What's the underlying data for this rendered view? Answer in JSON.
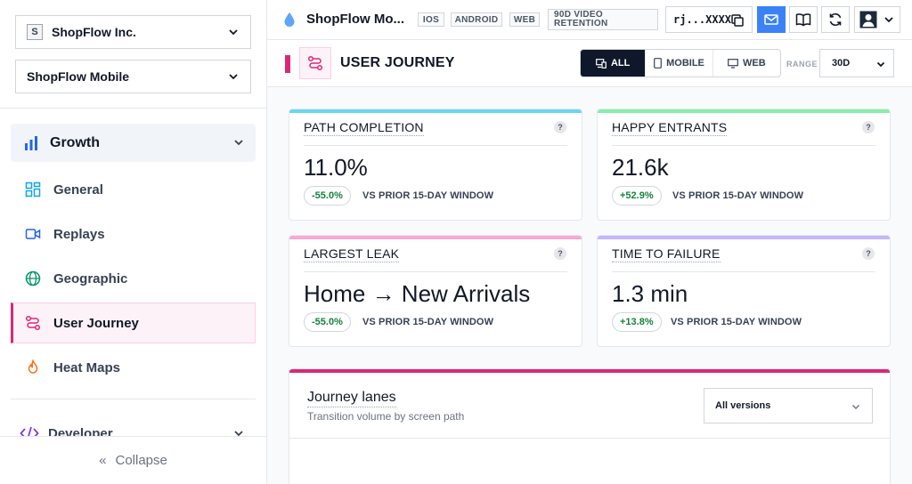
{
  "sidebar": {
    "org": {
      "badge": "S",
      "name": "ShopFlow Inc."
    },
    "app": {
      "name": "ShopFlow Mobile"
    },
    "section": {
      "label": "Growth"
    },
    "items": [
      {
        "label": "General",
        "icon": "grid-icon"
      },
      {
        "label": "Replays",
        "icon": "video-icon"
      },
      {
        "label": "Geographic",
        "icon": "globe-icon"
      },
      {
        "label": "User Journey",
        "icon": "route-icon",
        "active": true
      },
      {
        "label": "Heat Maps",
        "icon": "flame-icon"
      }
    ],
    "developer": {
      "label": "Developer"
    },
    "collapse": {
      "label": "Collapse"
    }
  },
  "topbar": {
    "app_title": "ShopFlow Mo...",
    "platforms": [
      "IOS",
      "ANDROID",
      "WEB"
    ],
    "retention_line1": "90D VIDEO",
    "retention_line2": "RETENTION",
    "api_key": "rj...XXXX"
  },
  "header": {
    "title": "USER JOURNEY",
    "platform_filter": [
      {
        "label": "ALL",
        "active": true
      },
      {
        "label": "MOBILE",
        "active": false
      },
      {
        "label": "WEB",
        "active": false
      }
    ],
    "range_label": "RANGE",
    "range_value": "30D"
  },
  "cards": [
    {
      "title": "PATH COMPLETION",
      "value": "11.0%",
      "delta": "-55.0%",
      "vs": "VS PRIOR 15-DAY WINDOW",
      "color": "#67d8f0"
    },
    {
      "title": "HAPPY ENTRANTS",
      "value": "21.6k",
      "delta": "+52.9%",
      "vs": "VS PRIOR 15-DAY WINDOW",
      "color": "#86efac"
    },
    {
      "title": "LARGEST LEAK",
      "value": "Home → New Arrivals",
      "delta": "-55.0%",
      "vs": "VS PRIOR 15-DAY WINDOW",
      "color": "#f9a8d4"
    },
    {
      "title": "TIME TO FAILURE",
      "value": "1.3 min",
      "delta": "+13.8%",
      "vs": "VS PRIOR 15-DAY WINDOW",
      "color": "#c4b5fd"
    }
  ],
  "lanes": {
    "title": "Journey lanes",
    "subtitle": "Transition volume by screen path",
    "version_select": "All versions",
    "accent": "#db2777"
  },
  "help_glyph": "?"
}
